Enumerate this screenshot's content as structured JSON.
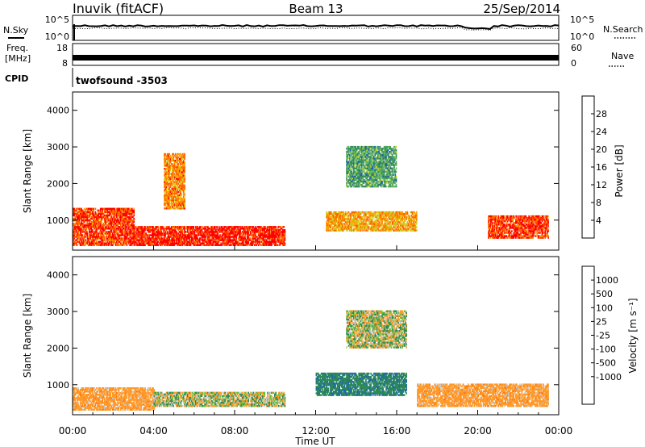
{
  "header": {
    "station": "Inuvik  (fitACF)",
    "beam": "Beam 13",
    "date": "25/Sep/2014"
  },
  "side_labels": {
    "nsky": "N.Sky",
    "freq": "Freq.",
    "freq_unit": "[MHz]",
    "cpid": "CPID",
    "nsearch": "N.Search",
    "nave": "Nave"
  },
  "nsky_ticks": [
    "10^5",
    "10^0"
  ],
  "nsearch_ticks": [
    "10^5",
    "10^0"
  ],
  "freq_ticks": [
    "18",
    "8"
  ],
  "nave_ticks": [
    "60",
    "0"
  ],
  "cpid_text": "twofsound  -3503",
  "x_ticks": [
    "00:00",
    "04:00",
    "08:00",
    "12:00",
    "16:00",
    "20:00",
    "00:00"
  ],
  "x_label": "Time UT",
  "y_label": "Slant Range [km]",
  "y_ticks": [
    "4000",
    "3000",
    "2000",
    "1000"
  ],
  "power_colorbar": {
    "label": "Power [dB]",
    "ticks": [
      "28",
      "24",
      "20",
      "16",
      "12",
      "8",
      "4"
    ],
    "colors": [
      "#0000ff",
      "#1f5fb4",
      "#3a8f5a",
      "#62b86a",
      "#c9d62c",
      "#ffa000",
      "#ff6400",
      "#ff0000"
    ]
  },
  "velocity_colorbar": {
    "label": "Velocity [m s⁻¹]",
    "ticks": [
      "1000",
      "500",
      "100",
      "25",
      "-25",
      "-100",
      "-500",
      "-1000"
    ],
    "colors": [
      "#1533cf",
      "#1c6aa8",
      "#2f8a56",
      "#5fbf3a",
      "#b0d060",
      "#c8c8c8",
      "#ff9a2a",
      "#ff7a10",
      "#ff4a00",
      "#ff0000"
    ]
  },
  "chart_data": [
    {
      "type": "heatmap",
      "title": "Power",
      "xlabel": "Time UT",
      "ylabel": "Slant Range [km]",
      "xlim": [
        "00:00",
        "24:00"
      ],
      "ylim": [
        180,
        4500
      ],
      "zlabel": "Power [dB]",
      "zlim": [
        0,
        32
      ],
      "summary_regions": [
        {
          "time": [
            "00:00",
            "03:00"
          ],
          "range_km": [
            300,
            1300
          ],
          "power_db": 28
        },
        {
          "time": [
            "03:00",
            "10:30"
          ],
          "range_km": [
            300,
            800
          ],
          "power_db": 30
        },
        {
          "time": [
            "04:30",
            "05:30"
          ],
          "range_km": [
            1300,
            2800
          ],
          "power_db": 24
        },
        {
          "time": [
            "12:30",
            "17:00"
          ],
          "range_km": [
            700,
            1200
          ],
          "power_db": 22
        },
        {
          "time": [
            "13:30",
            "16:00"
          ],
          "range_km": [
            1900,
            3000
          ],
          "power_db": 12
        },
        {
          "time": [
            "20:30",
            "23:30"
          ],
          "range_km": [
            500,
            1100
          ],
          "power_db": 28
        }
      ]
    },
    {
      "type": "heatmap",
      "title": "Velocity",
      "xlabel": "Time UT",
      "ylabel": "Slant Range [km]",
      "xlim": [
        "00:00",
        "24:00"
      ],
      "ylim": [
        180,
        4500
      ],
      "zlabel": "Velocity [m s-1]",
      "zlim": [
        -1000,
        1000
      ],
      "summary_regions": [
        {
          "time": [
            "00:00",
            "04:00"
          ],
          "range_km": [
            300,
            900
          ],
          "velocity": -300
        },
        {
          "time": [
            "04:00",
            "10:30"
          ],
          "range_km": [
            400,
            800
          ],
          "velocity": 0
        },
        {
          "time": [
            "12:00",
            "16:30"
          ],
          "range_km": [
            700,
            1300
          ],
          "velocity": 400
        },
        {
          "time": [
            "13:30",
            "16:30"
          ],
          "range_km": [
            2000,
            3000
          ],
          "velocity": 0
        },
        {
          "time": [
            "17:00",
            "23:30"
          ],
          "range_km": [
            400,
            1000
          ],
          "velocity": -300
        }
      ]
    }
  ]
}
